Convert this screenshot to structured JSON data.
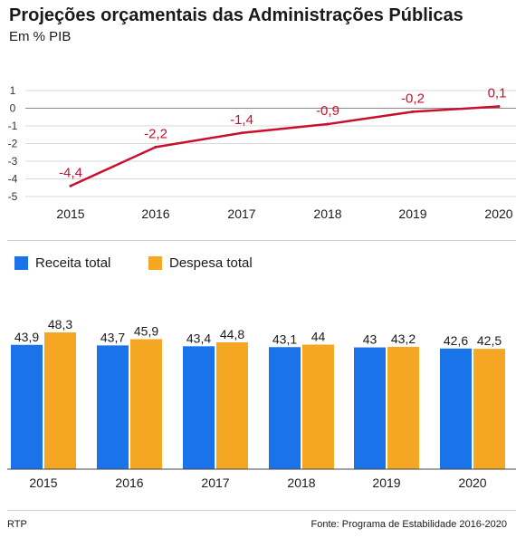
{
  "title": "Projeções orçamentais das Administrações Públicas",
  "subtitle": "Em % PIB",
  "source": "Fonte: Programa de Estabilidade 2016-2020",
  "credit": "RTP",
  "colors": {
    "line": "#c8102e",
    "receita": "#1a73e8",
    "despesa": "#f5a623"
  },
  "chart_data": [
    {
      "type": "line",
      "x": [
        "2015",
        "2016",
        "2017",
        "2018",
        "2019",
        "2020"
      ],
      "series": [
        {
          "values": [
            -4.4,
            -2.2,
            -1.4,
            -0.9,
            -0.2,
            0.1
          ],
          "labels": [
            "-4,4",
            "-2,2",
            "-1,4",
            "-0,9",
            "-0,2",
            "0,1"
          ]
        }
      ],
      "yticks": [
        "1",
        "0",
        "-1",
        "-2",
        "-3",
        "-4",
        "-5"
      ],
      "ylim": [
        -5,
        1
      ]
    },
    {
      "type": "bar",
      "categories": [
        "2015",
        "2016",
        "2017",
        "2018",
        "2019",
        "2020"
      ],
      "series": [
        {
          "name": "Receita total",
          "values": [
            43.9,
            43.7,
            43.4,
            43.1,
            43,
            42.6
          ],
          "labels": [
            "43,9",
            "43,7",
            "43,4",
            "43,1",
            "43",
            "42,6"
          ]
        },
        {
          "name": "Despesa total",
          "values": [
            48.3,
            45.9,
            44.8,
            44,
            43.2,
            42.5
          ],
          "labels": [
            "48,3",
            "45,9",
            "44,8",
            "44",
            "43,2",
            "42,5"
          ]
        }
      ],
      "ylim": [
        0,
        48.3
      ]
    }
  ]
}
